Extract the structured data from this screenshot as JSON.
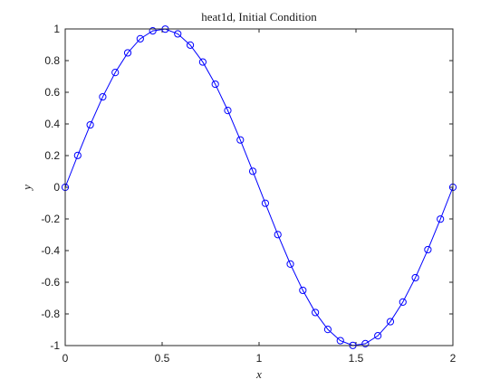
{
  "chart_data": {
    "type": "line",
    "title": "heat1d, Initial Condition",
    "xlabel": "x",
    "ylabel": "y",
    "xlim": [
      0,
      2
    ],
    "ylim": [
      -1,
      1
    ],
    "grid": false,
    "xticks": [
      0,
      0.5,
      1,
      1.5,
      2
    ],
    "xtick_labels": [
      "0",
      "0.5",
      "1",
      "1.5",
      "2"
    ],
    "yticks": [
      -1,
      -0.8,
      -0.6,
      -0.4,
      -0.2,
      0,
      0.2,
      0.4,
      0.6,
      0.8,
      1
    ],
    "ytick_labels": [
      "-1",
      "-0.8",
      "-0.6",
      "-0.4",
      "-0.2",
      "0",
      "0.2",
      "0.4",
      "0.6",
      "0.8",
      "1"
    ],
    "series": [
      {
        "color": "#0000ff",
        "marker": "circle-open",
        "x": [
          0,
          0.0645,
          0.129,
          0.1935,
          0.2581,
          0.3226,
          0.3871,
          0.4516,
          0.5161,
          0.5806,
          0.6452,
          0.7097,
          0.7742,
          0.8387,
          0.9032,
          0.9677,
          1.0323,
          1.0968,
          1.1613,
          1.2258,
          1.2903,
          1.3548,
          1.4194,
          1.4839,
          1.5484,
          1.6129,
          1.6774,
          1.7419,
          1.8065,
          1.871,
          1.9355,
          2
        ],
        "y": [
          0,
          0.201,
          0.394,
          0.571,
          0.725,
          0.849,
          0.938,
          0.988,
          0.999,
          0.969,
          0.898,
          0.791,
          0.651,
          0.485,
          0.299,
          0.101,
          -0.101,
          -0.299,
          -0.485,
          -0.651,
          -0.791,
          -0.898,
          -0.969,
          -0.999,
          -0.988,
          -0.938,
          -0.849,
          -0.725,
          -0.571,
          -0.394,
          -0.201,
          0
        ]
      }
    ]
  }
}
